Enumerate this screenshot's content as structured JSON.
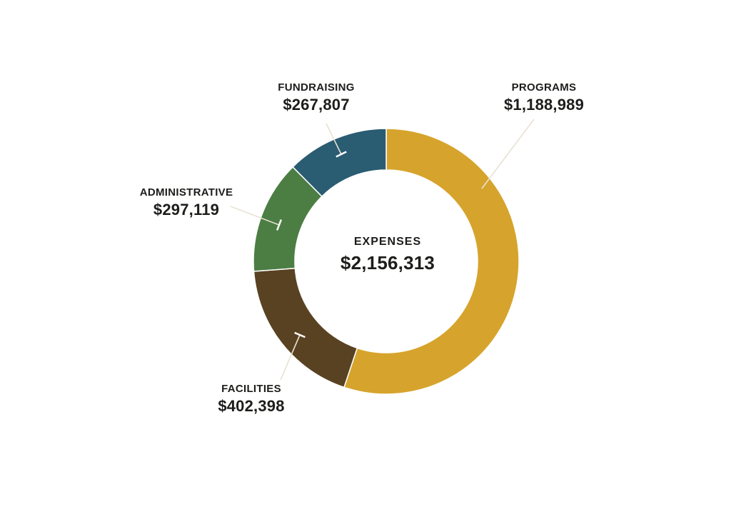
{
  "chart_data": {
    "type": "pie",
    "subtype": "donut",
    "title": "EXPENSES",
    "center": {
      "label": "EXPENSES",
      "total_display": "$2,156,313",
      "total_value": 2156313
    },
    "direction": "clockwise",
    "start_angle_deg": 0,
    "legend_position": "callout-labels",
    "background_color": "#ffffff",
    "leader_line_color": "#e8e2d3",
    "leader_cap_color": "#ffffff",
    "text_color": "#1d1d1b",
    "segments": [
      {
        "label": "PROGRAMS",
        "value": 1188989,
        "display_value": "$1,188,989",
        "color": "#d6a42c"
      },
      {
        "label": "FACILITIES",
        "value": 402398,
        "display_value": "$402,398",
        "color": "#594222"
      },
      {
        "label": "ADMINISTRATIVE",
        "value": 297119,
        "display_value": "$297,119",
        "color": "#4c7e44"
      },
      {
        "label": "FUNDRAISING",
        "value": 267807,
        "display_value": "$267,807",
        "color": "#2a5c72"
      }
    ]
  }
}
